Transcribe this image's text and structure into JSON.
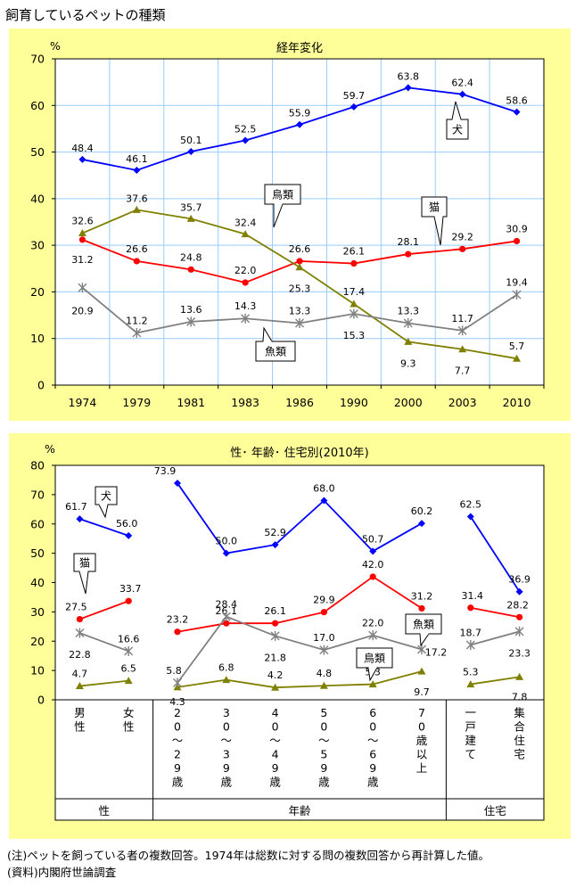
{
  "page_title": "飼育しているペットの種類",
  "notes": [
    "(注)ペットを飼っている者の複数回答。1974年は総数に対する問の複数回答から再計算した値。",
    "(資料)内閣府世論調査"
  ],
  "colors": {
    "panel_bg": "#ffff99",
    "plot_bg": "#ffffff",
    "grid": "#99ccff",
    "dog": "#0000ff",
    "cat": "#ff0000",
    "bird": "#808000",
    "fish": "#808080"
  },
  "chart_data": [
    {
      "type": "line",
      "title": "経年変化",
      "unit": "%",
      "ylim": [
        0,
        70
      ],
      "yticks": [
        0,
        10,
        20,
        30,
        40,
        50,
        60,
        70
      ],
      "categories": [
        "1974",
        "1979",
        "1981",
        "1983",
        "1986",
        "1990",
        "2000",
        "2003",
        "2010"
      ],
      "grid": true,
      "series": [
        {
          "name": "犬",
          "color": "#0000ff",
          "marker": "diamond",
          "values": [
            48.4,
            46.1,
            50.1,
            52.5,
            55.9,
            59.7,
            63.8,
            62.4,
            58.6
          ],
          "labels": [
            "48.4",
            "46.1",
            "50.1",
            "52.5",
            "55.9",
            "59.7",
            "63.8",
            "62.4",
            "58.6"
          ]
        },
        {
          "name": "猫",
          "color": "#ff0000",
          "marker": "circle",
          "values": [
            31.2,
            26.6,
            24.8,
            22.0,
            26.6,
            26.1,
            28.1,
            29.2,
            30.9
          ],
          "labels": [
            "31.2",
            "26.6",
            "24.8",
            "22.0",
            "26.6",
            "26.1",
            "28.1",
            "29.2",
            "30.9"
          ]
        },
        {
          "name": "鳥類",
          "color": "#808000",
          "marker": "triangle",
          "values": [
            32.6,
            37.6,
            35.7,
            32.4,
            25.3,
            17.4,
            9.3,
            7.7,
            5.7
          ],
          "labels": [
            "32.6",
            "37.6",
            "35.7",
            "32.4",
            "25.3",
            "17.4",
            "9.3",
            "7.7",
            "5.7"
          ]
        },
        {
          "name": "魚類",
          "color": "#808080",
          "marker": "star",
          "values": [
            20.9,
            11.2,
            13.6,
            14.3,
            13.3,
            15.3,
            13.3,
            11.7,
            19.4
          ],
          "labels": [
            "20.9",
            "11.2",
            "13.6",
            "14.3",
            "13.3",
            "15.3",
            "13.3",
            "11.7",
            "19.4"
          ]
        }
      ]
    },
    {
      "type": "line",
      "title": "性･ 年齢･ 住宅別(2010年)",
      "unit": "%",
      "ylim": [
        0,
        80
      ],
      "yticks": [
        0,
        10,
        20,
        30,
        40,
        50,
        60,
        70,
        80
      ],
      "categories": [
        "男性",
        "女性",
        "20～29歳",
        "30～39歳",
        "40～49歳",
        "50～59歳",
        "60～69歳",
        "70歳以上",
        "一戸建て",
        "集合住宅"
      ],
      "category_labels": [
        [
          "男",
          "性"
        ],
        [
          "女",
          "性"
        ],
        [
          "2",
          "0",
          "～",
          "2",
          "9",
          "歳"
        ],
        [
          "3",
          "0",
          "～",
          "3",
          "9",
          "歳"
        ],
        [
          "4",
          "0",
          "～",
          "4",
          "9",
          "歳"
        ],
        [
          "5",
          "0",
          "～",
          "5",
          "9",
          "歳"
        ],
        [
          "6",
          "0",
          "～",
          "6",
          "9",
          "歳"
        ],
        [
          "7",
          "0",
          "歳",
          "以",
          "上"
        ],
        [
          "一",
          "戸",
          "建",
          "て"
        ],
        [
          "集",
          "合",
          "住",
          "宅"
        ]
      ],
      "groups": [
        {
          "name": "性",
          "members": [
            "男性",
            "女性"
          ]
        },
        {
          "name": "年齢",
          "members": [
            "20～29歳",
            "30～39歳",
            "40～49歳",
            "50～59歳",
            "60～69歳",
            "70歳以上"
          ]
        },
        {
          "name": "住宅",
          "members": [
            "一戸建て",
            "集合住宅"
          ]
        }
      ],
      "grid": false,
      "series": [
        {
          "name": "犬",
          "color": "#0000ff",
          "marker": "diamond",
          "values": [
            61.7,
            56.0,
            73.9,
            50.0,
            52.9,
            68.0,
            50.7,
            60.2,
            62.5,
            36.9
          ],
          "labels": [
            "61.7",
            "56.0",
            "73.9",
            "50.0",
            "52.9",
            "68.0",
            "50.7",
            "60.2",
            "62.5",
            "36.9"
          ]
        },
        {
          "name": "猫",
          "color": "#ff0000",
          "marker": "circle",
          "values": [
            27.5,
            33.7,
            23.2,
            26.1,
            26.1,
            29.9,
            42.0,
            31.2,
            31.4,
            28.2
          ],
          "labels": [
            "27.5",
            "33.7",
            "23.2",
            "26.1",
            "26.1",
            "29.9",
            "42.0",
            "31.2",
            "31.4",
            "28.2"
          ]
        },
        {
          "name": "鳥類",
          "color": "#808000",
          "marker": "triangle",
          "values": [
            4.7,
            6.5,
            4.3,
            6.8,
            4.2,
            4.8,
            5.3,
            9.7,
            5.3,
            7.8
          ],
          "labels": [
            "4.7",
            "6.5",
            "4.3",
            "6.8",
            "4.2",
            "4.8",
            "5.3",
            "9.7",
            "5.3",
            "7.8"
          ]
        },
        {
          "name": "魚類",
          "color": "#808080",
          "marker": "star",
          "values": [
            22.8,
            16.6,
            5.8,
            28.4,
            21.8,
            17.0,
            22.0,
            17.2,
            18.7,
            23.3
          ],
          "labels": [
            "22.8",
            "16.6",
            "5.8",
            "28.4",
            "21.8",
            "17.0",
            "22.0",
            "17.2",
            "18.7",
            "23.3"
          ]
        }
      ]
    }
  ]
}
